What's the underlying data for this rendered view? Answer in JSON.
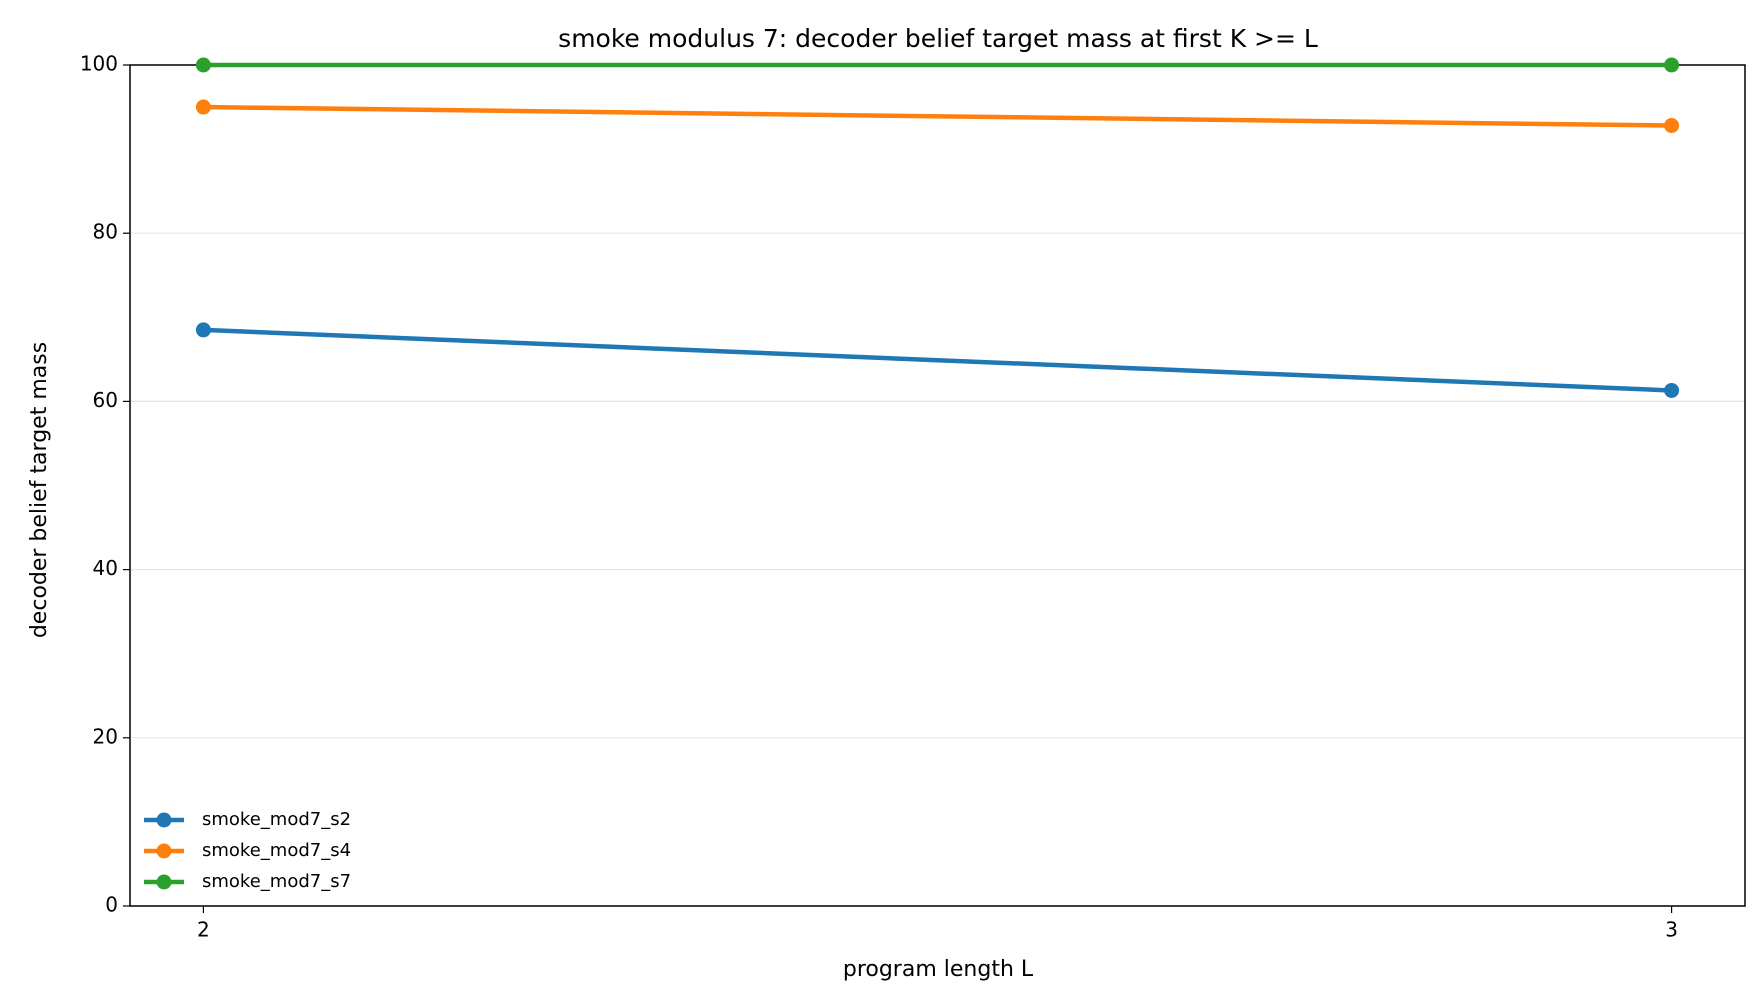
{
  "chart_data": {
    "type": "line",
    "title": "smoke modulus 7: decoder belief target mass at first K >= L",
    "x_label": "program length L",
    "y_label": "decoder belief target mass",
    "x": [
      2,
      3
    ],
    "series": [
      {
        "name": "smoke_mod7_s2",
        "color": "#1f77b4",
        "values": [
          68.5,
          61.3
        ]
      },
      {
        "name": "smoke_mod7_s4",
        "color": "#ff7f0e",
        "values": [
          95.0,
          92.8
        ]
      },
      {
        "name": "smoke_mod7_s7",
        "color": "#2ca02c",
        "values": [
          100,
          100
        ]
      }
    ],
    "xlim": [
      1.95,
      3.05
    ],
    "xticks": [
      2,
      3
    ],
    "ylim": [
      0,
      100
    ],
    "yticks": [
      0,
      20,
      40,
      60,
      80,
      100
    ],
    "grid": true,
    "legend": "lower left"
  }
}
